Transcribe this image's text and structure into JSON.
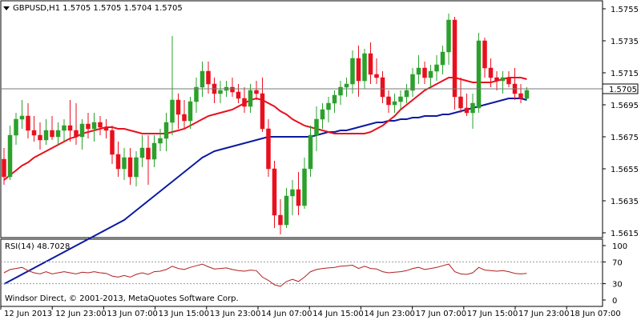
{
  "window": {
    "title": "GBPUSD,H1  1.5705 1.5705 1.5704 1.5705",
    "copyright": "Windsor Direct, © 2001-2013, MetaQuotes Software Corp."
  },
  "indicator": {
    "label": "RSI(14) 48.7028",
    "levels": [
      70,
      30
    ],
    "axis_ticks": [
      "100",
      "70",
      "30",
      "0"
    ]
  },
  "colors": {
    "bull": "#2ca02c",
    "bear": "#e8101e",
    "ma_fast": "#e8101e",
    "ma_slow": "#0a1aa0",
    "rsi": "#b21f1f",
    "grid": "#000000"
  },
  "chart_data": [
    {
      "type": "candlestick",
      "symbol": "GBPUSD",
      "timeframe": "H1",
      "current_price": "1.5705",
      "y_ticks": [
        "1.5755",
        "1.5735",
        "1.5715",
        "1.5695",
        "1.5675",
        "1.5655",
        "1.5635",
        "1.5615"
      ],
      "ylim": [
        1.5612,
        1.576
      ],
      "x_ticks": [
        "12 Jun 2013",
        "12 Jun 23:00",
        "13 Jun 07:00",
        "13 Jun 15:00",
        "13 Jun 23:00",
        "14 Jun 07:00",
        "14 Jun 15:00",
        "14 Jun 23:00",
        "17 Jun 07:00",
        "17 Jun 15:00",
        "17 Jun 23:00",
        "18 Jun 07:00"
      ],
      "candles": [
        [
          1.5661,
          1.5668,
          1.5645,
          1.565
        ],
        [
          1.565,
          1.5682,
          1.5648,
          1.5676
        ],
        [
          1.5676,
          1.569,
          1.567,
          1.5686
        ],
        [
          1.5686,
          1.5698,
          1.568,
          1.5688
        ],
        [
          1.5688,
          1.5696,
          1.5674,
          1.5679
        ],
        [
          1.5679,
          1.5688,
          1.5672,
          1.5676
        ],
        [
          1.5676,
          1.5684,
          1.5667,
          1.5673
        ],
        [
          1.5673,
          1.5686,
          1.567,
          1.5679
        ],
        [
          1.5679,
          1.5688,
          1.5673,
          1.5675
        ],
        [
          1.5675,
          1.5684,
          1.567,
          1.5679
        ],
        [
          1.5679,
          1.5686,
          1.5672,
          1.5682
        ],
        [
          1.5682,
          1.5698,
          1.5672,
          1.5679
        ],
        [
          1.5679,
          1.5696,
          1.567,
          1.5675
        ],
        [
          1.5675,
          1.5686,
          1.5667,
          1.5683
        ],
        [
          1.5683,
          1.569,
          1.5674,
          1.568
        ],
        [
          1.568,
          1.569,
          1.5672,
          1.5684
        ],
        [
          1.5684,
          1.5688,
          1.5676,
          1.5681
        ],
        [
          1.5681,
          1.5686,
          1.5674,
          1.5679
        ],
        [
          1.5679,
          1.5682,
          1.5658,
          1.5664
        ],
        [
          1.5664,
          1.5672,
          1.565,
          1.5655
        ],
        [
          1.5655,
          1.5668,
          1.5648,
          1.5662
        ],
        [
          1.5662,
          1.5668,
          1.5645,
          1.565
        ],
        [
          1.565,
          1.5666,
          1.5644,
          1.5662
        ],
        [
          1.5662,
          1.5676,
          1.5656,
          1.5668
        ],
        [
          1.5668,
          1.5676,
          1.5645,
          1.5661
        ],
        [
          1.5661,
          1.5676,
          1.5656,
          1.5671
        ],
        [
          1.5671,
          1.568,
          1.5666,
          1.5674
        ],
        [
          1.5674,
          1.569,
          1.5666,
          1.5684
        ],
        [
          1.5684,
          1.5738,
          1.5676,
          1.5698
        ],
        [
          1.5698,
          1.5702,
          1.568,
          1.5689
        ],
        [
          1.5689,
          1.5698,
          1.568,
          1.5685
        ],
        [
          1.5685,
          1.57,
          1.568,
          1.5697
        ],
        [
          1.5697,
          1.5712,
          1.569,
          1.5706
        ],
        [
          1.5706,
          1.5722,
          1.57,
          1.5716
        ],
        [
          1.5716,
          1.5722,
          1.5702,
          1.5708
        ],
        [
          1.5708,
          1.5712,
          1.5696,
          1.5702
        ],
        [
          1.5702,
          1.571,
          1.5696,
          1.5704
        ],
        [
          1.5704,
          1.571,
          1.57,
          1.5706
        ],
        [
          1.5706,
          1.5712,
          1.57,
          1.5703
        ],
        [
          1.5703,
          1.5708,
          1.5696,
          1.5699
        ],
        [
          1.5699,
          1.5706,
          1.569,
          1.5694
        ],
        [
          1.5694,
          1.5708,
          1.569,
          1.5704
        ],
        [
          1.5704,
          1.571,
          1.5698,
          1.5702
        ],
        [
          1.5702,
          1.5712,
          1.5678,
          1.568
        ],
        [
          1.568,
          1.5686,
          1.565,
          1.5655
        ],
        [
          1.5655,
          1.566,
          1.5618,
          1.5626
        ],
        [
          1.5626,
          1.5636,
          1.5614,
          1.562
        ],
        [
          1.562,
          1.5643,
          1.5618,
          1.5638
        ],
        [
          1.5638,
          1.5648,
          1.5626,
          1.5642
        ],
        [
          1.5642,
          1.5653,
          1.5626,
          1.5632
        ],
        [
          1.5632,
          1.5662,
          1.563,
          1.5655
        ],
        [
          1.5655,
          1.5682,
          1.565,
          1.5676
        ],
        [
          1.5676,
          1.5694,
          1.5666,
          1.5686
        ],
        [
          1.5686,
          1.5696,
          1.568,
          1.5692
        ],
        [
          1.5692,
          1.57,
          1.5684,
          1.5696
        ],
        [
          1.5696,
          1.5704,
          1.569,
          1.5701
        ],
        [
          1.5701,
          1.571,
          1.5695,
          1.5706
        ],
        [
          1.5706,
          1.5712,
          1.57,
          1.5708
        ],
        [
          1.5708,
          1.5729,
          1.5702,
          1.5724
        ],
        [
          1.5724,
          1.5732,
          1.57,
          1.571
        ],
        [
          1.571,
          1.573,
          1.5705,
          1.5727
        ],
        [
          1.5727,
          1.5734,
          1.5708,
          1.5714
        ],
        [
          1.5714,
          1.5724,
          1.5708,
          1.5712
        ],
        [
          1.5712,
          1.5716,
          1.5696,
          1.57
        ],
        [
          1.57,
          1.5704,
          1.569,
          1.5695
        ],
        [
          1.5695,
          1.5702,
          1.569,
          1.5697
        ],
        [
          1.5697,
          1.5704,
          1.5692,
          1.57
        ],
        [
          1.57,
          1.5708,
          1.5696,
          1.5704
        ],
        [
          1.5704,
          1.5718,
          1.57,
          1.5714
        ],
        [
          1.5714,
          1.5726,
          1.5708,
          1.5718
        ],
        [
          1.5718,
          1.5722,
          1.5708,
          1.5712
        ],
        [
          1.5712,
          1.572,
          1.5706,
          1.5716
        ],
        [
          1.5716,
          1.5726,
          1.571,
          1.572
        ],
        [
          1.572,
          1.5732,
          1.5714,
          1.5728
        ],
        [
          1.5728,
          1.5752,
          1.572,
          1.5748
        ],
        [
          1.5748,
          1.575,
          1.5692,
          1.57
        ],
        [
          1.57,
          1.5712,
          1.569,
          1.5693
        ],
        [
          1.5693,
          1.5702,
          1.5688,
          1.569
        ],
        [
          1.569,
          1.5702,
          1.568,
          1.5696
        ],
        [
          1.5693,
          1.574,
          1.569,
          1.5735
        ],
        [
          1.5735,
          1.5737,
          1.5712,
          1.5718
        ],
        [
          1.5718,
          1.5724,
          1.5706,
          1.5712
        ],
        [
          1.5712,
          1.5716,
          1.5704,
          1.571
        ],
        [
          1.571,
          1.5716,
          1.5702,
          1.5712
        ],
        [
          1.5712,
          1.5716,
          1.5706,
          1.5708
        ],
        [
          1.5708,
          1.5718,
          1.5698,
          1.5702
        ],
        [
          1.5702,
          1.5708,
          1.5696,
          1.5699
        ],
        [
          1.5699,
          1.5706,
          1.5698,
          1.5704
        ]
      ],
      "ma_fast": [
        1.5648,
        1.5651,
        1.5654,
        1.5657,
        1.5659,
        1.5662,
        1.5664,
        1.5666,
        1.5668,
        1.567,
        1.5672,
        1.5674,
        1.5675,
        1.5677,
        1.5678,
        1.5679,
        1.568,
        1.5681,
        1.5681,
        1.568,
        1.568,
        1.5679,
        1.5678,
        1.5677,
        1.5677,
        1.5677,
        1.5677,
        1.5677,
        1.5678,
        1.5679,
        1.568,
        1.5682,
        1.5684,
        1.5686,
        1.5688,
        1.5689,
        1.569,
        1.5691,
        1.5692,
        1.5694,
        1.5696,
        1.5698,
        1.5699,
        1.5698,
        1.5696,
        1.5694,
        1.5691,
        1.5689,
        1.5686,
        1.5684,
        1.5682,
        1.5681,
        1.568,
        1.5679,
        1.5678,
        1.5677,
        1.5677,
        1.5677,
        1.5677,
        1.5677,
        1.5677,
        1.5678,
        1.568,
        1.5682,
        1.5685,
        1.5688,
        1.5692,
        1.5695,
        1.5698,
        1.5701,
        1.5704,
        1.5706,
        1.5708,
        1.571,
        1.5712,
        1.5712,
        1.5711,
        1.571,
        1.5709,
        1.5709,
        1.5709,
        1.5709,
        1.571,
        1.5711,
        1.5712,
        1.5712,
        1.5712,
        1.5711
      ],
      "ma_slow": [
        1.5583,
        1.5585,
        1.5587,
        1.5589,
        1.5591,
        1.5593,
        1.5595,
        1.5597,
        1.5599,
        1.5601,
        1.5603,
        1.5605,
        1.5607,
        1.5609,
        1.5611,
        1.5613,
        1.5615,
        1.5617,
        1.5619,
        1.5621,
        1.5623,
        1.5626,
        1.5629,
        1.5632,
        1.5635,
        1.5638,
        1.5641,
        1.5644,
        1.5647,
        1.565,
        1.5653,
        1.5656,
        1.5659,
        1.5662,
        1.5664,
        1.5666,
        1.5667,
        1.5668,
        1.5669,
        1.567,
        1.5671,
        1.5672,
        1.5673,
        1.5674,
        1.5675,
        1.5675,
        1.5675,
        1.5675,
        1.5675,
        1.5675,
        1.5675,
        1.5675,
        1.5676,
        1.5677,
        1.5678,
        1.5678,
        1.5679,
        1.5679,
        1.568,
        1.5681,
        1.5682,
        1.5683,
        1.5684,
        1.5684,
        1.5685,
        1.5685,
        1.5686,
        1.5686,
        1.5687,
        1.5687,
        1.5688,
        1.5688,
        1.5688,
        1.5689,
        1.5689,
        1.569,
        1.5691,
        1.5692,
        1.5693,
        1.5694,
        1.5695,
        1.5696,
        1.5697,
        1.5698,
        1.5699,
        1.5699,
        1.5699,
        1.5698
      ]
    },
    {
      "type": "line",
      "name": "RSI(14)",
      "ylim": [
        0,
        100
      ],
      "levels": [
        70,
        30
      ],
      "values": [
        50,
        56,
        58,
        60,
        54,
        50,
        48,
        52,
        48,
        50,
        52,
        50,
        48,
        51,
        50,
        52,
        50,
        49,
        44,
        42,
        45,
        42,
        47,
        50,
        47,
        52,
        53,
        56,
        62,
        58,
        56,
        60,
        63,
        66,
        61,
        57,
        58,
        59,
        56,
        54,
        53,
        55,
        54,
        42,
        36,
        28,
        25,
        34,
        38,
        34,
        42,
        52,
        56,
        58,
        59,
        60,
        62,
        63,
        64,
        58,
        62,
        58,
        57,
        52,
        50,
        51,
        52,
        54,
        58,
        60,
        56,
        58,
        60,
        63,
        66,
        52,
        48,
        47,
        50,
        60,
        55,
        54,
        53,
        54,
        52,
        49,
        48,
        49
      ]
    }
  ]
}
